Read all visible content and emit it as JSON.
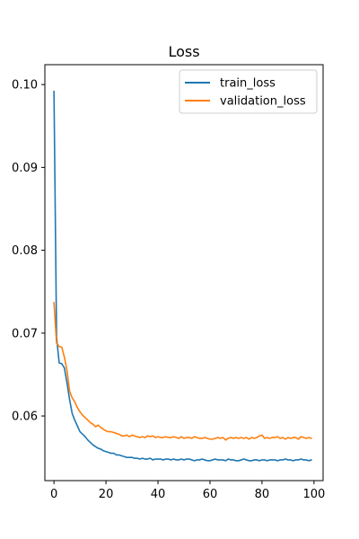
{
  "chart_data": {
    "type": "line",
    "title": "Loss",
    "xlabel": "",
    "ylabel": "",
    "xlim": [
      -3.5,
      103.5
    ],
    "ylim": [
      0.0522,
      0.1024
    ],
    "xticks": [
      0,
      20,
      40,
      60,
      80,
      100
    ],
    "yticks": [
      0.06,
      0.07,
      0.08,
      0.09,
      0.1
    ],
    "ytick_labels": [
      "0.06",
      "0.07",
      "0.08",
      "0.09",
      "0.10"
    ],
    "grid": false,
    "legend_position": "top-right",
    "x": [
      0,
      1,
      2,
      3,
      4,
      5,
      6,
      7,
      8,
      9,
      10,
      11,
      12,
      13,
      14,
      15,
      16,
      17,
      18,
      19,
      20,
      21,
      22,
      23,
      24,
      25,
      26,
      27,
      28,
      29,
      30,
      31,
      32,
      33,
      34,
      35,
      36,
      37,
      38,
      39,
      40,
      41,
      42,
      43,
      44,
      45,
      46,
      47,
      48,
      49,
      50,
      51,
      52,
      53,
      54,
      55,
      56,
      57,
      58,
      59,
      60,
      61,
      62,
      63,
      64,
      65,
      66,
      67,
      68,
      69,
      70,
      71,
      72,
      73,
      74,
      75,
      76,
      77,
      78,
      79,
      80,
      81,
      82,
      83,
      84,
      85,
      86,
      87,
      88,
      89,
      90,
      91,
      92,
      93,
      94,
      95,
      96,
      97,
      98,
      99
    ],
    "series": [
      {
        "name": "train_loss",
        "color": "#1f77b4",
        "values": [
          0.0992,
          0.0695,
          0.0664,
          0.0663,
          0.0658,
          0.064,
          0.062,
          0.0603,
          0.0595,
          0.0588,
          0.0581,
          0.0578,
          0.0575,
          0.0571,
          0.0568,
          0.0565,
          0.0563,
          0.0561,
          0.056,
          0.0558,
          0.0557,
          0.0556,
          0.0555,
          0.0555,
          0.0553,
          0.0553,
          0.0552,
          0.0551,
          0.055,
          0.055,
          0.055,
          0.0549,
          0.0549,
          0.0548,
          0.0549,
          0.0548,
          0.0548,
          0.0549,
          0.0547,
          0.0548,
          0.0548,
          0.0548,
          0.0547,
          0.0548,
          0.0548,
          0.0547,
          0.0548,
          0.0547,
          0.0547,
          0.0548,
          0.0547,
          0.0548,
          0.0548,
          0.0547,
          0.0546,
          0.0547,
          0.0547,
          0.0548,
          0.0547,
          0.0546,
          0.0546,
          0.0547,
          0.0548,
          0.0547,
          0.0547,
          0.0547,
          0.0546,
          0.0548,
          0.0547,
          0.0547,
          0.0546,
          0.0546,
          0.0547,
          0.0548,
          0.0547,
          0.0546,
          0.0546,
          0.0547,
          0.0547,
          0.0546,
          0.0547,
          0.0547,
          0.0546,
          0.0547,
          0.0547,
          0.0547,
          0.0546,
          0.0547,
          0.0547,
          0.0548,
          0.0547,
          0.0547,
          0.0546,
          0.0547,
          0.0547,
          0.0548,
          0.0547,
          0.0547,
          0.0546,
          0.0547
        ]
      },
      {
        "name": "validation_loss",
        "color": "#ff7f0e",
        "values": [
          0.0737,
          0.0688,
          0.0684,
          0.0683,
          0.0671,
          0.0655,
          0.063,
          0.0622,
          0.0617,
          0.061,
          0.0605,
          0.0601,
          0.0598,
          0.0595,
          0.0592,
          0.059,
          0.0587,
          0.0589,
          0.0586,
          0.0584,
          0.0582,
          0.0581,
          0.0581,
          0.058,
          0.0579,
          0.0578,
          0.0576,
          0.0576,
          0.0577,
          0.0575,
          0.0577,
          0.0576,
          0.0575,
          0.0574,
          0.0575,
          0.0574,
          0.0576,
          0.0575,
          0.0576,
          0.0574,
          0.0575,
          0.0574,
          0.0574,
          0.0575,
          0.0574,
          0.0574,
          0.0575,
          0.0574,
          0.0573,
          0.0575,
          0.0573,
          0.0574,
          0.0574,
          0.0573,
          0.0575,
          0.0574,
          0.0573,
          0.0573,
          0.0574,
          0.0573,
          0.0572,
          0.0572,
          0.0573,
          0.0574,
          0.0573,
          0.0574,
          0.0571,
          0.0573,
          0.0574,
          0.0573,
          0.0574,
          0.0573,
          0.0574,
          0.0573,
          0.0574,
          0.0572,
          0.0574,
          0.0573,
          0.0574,
          0.0576,
          0.0577,
          0.0573,
          0.0574,
          0.0573,
          0.0574,
          0.0574,
          0.0575,
          0.0573,
          0.0574,
          0.0572,
          0.0574,
          0.0573,
          0.0574,
          0.0574,
          0.0572,
          0.0575,
          0.0574,
          0.0573,
          0.0574,
          0.0573
        ]
      }
    ]
  }
}
